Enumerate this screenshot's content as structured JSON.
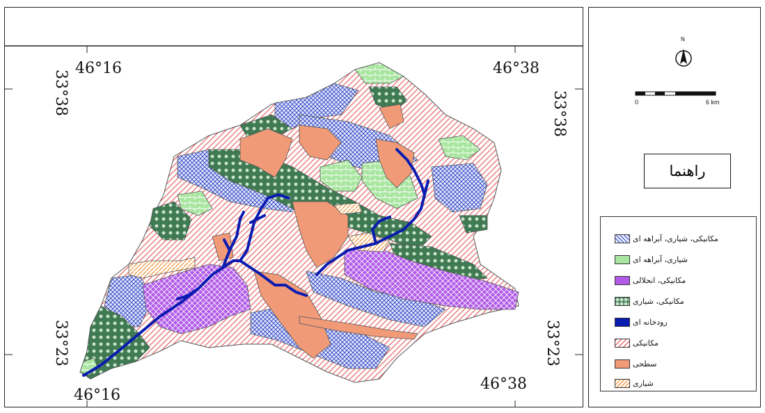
{
  "map": {
    "coords": {
      "lon_top_left": "46°16",
      "lon_top_right": "46°38",
      "lon_bottom_left": "46°16",
      "lon_bottom_right": "46°38",
      "lat_left_top": "33°38",
      "lat_right_top": "33°38",
      "lat_left_bottom": "33°23",
      "lat_right_bottom": "33°23"
    },
    "colors": {
      "blue_hatch": "#3b4fc4",
      "green": "#a8e6a0",
      "purple": "#b25be8",
      "dark_green": "#3f7a52",
      "river": "#0a1bb0",
      "red_hatch": "#e86a6a",
      "salmon": "#f09a78",
      "orange_hatch": "#f0a050"
    }
  },
  "side": {
    "north_label": "N",
    "scale_start": "0",
    "scale_end": "6 km",
    "legend_title": "راهنما",
    "legend_items": [
      {
        "label": "مکانیکی، شیاری، آبراهه ای",
        "swatch": "blue_hatch"
      },
      {
        "label": "شیاری، آبراهه ای",
        "swatch": "green"
      },
      {
        "label": "مکانیکی، انحلالی",
        "swatch": "purple"
      },
      {
        "label": "مکانیکی، شیاری",
        "swatch": "dark_green"
      },
      {
        "label": "رودخانه ای",
        "swatch": "river"
      },
      {
        "label": "مکانیکی",
        "swatch": "red_hatch"
      },
      {
        "label": "سطحی",
        "swatch": "salmon"
      },
      {
        "label": "شیاری",
        "swatch": "orange_hatch"
      }
    ]
  }
}
